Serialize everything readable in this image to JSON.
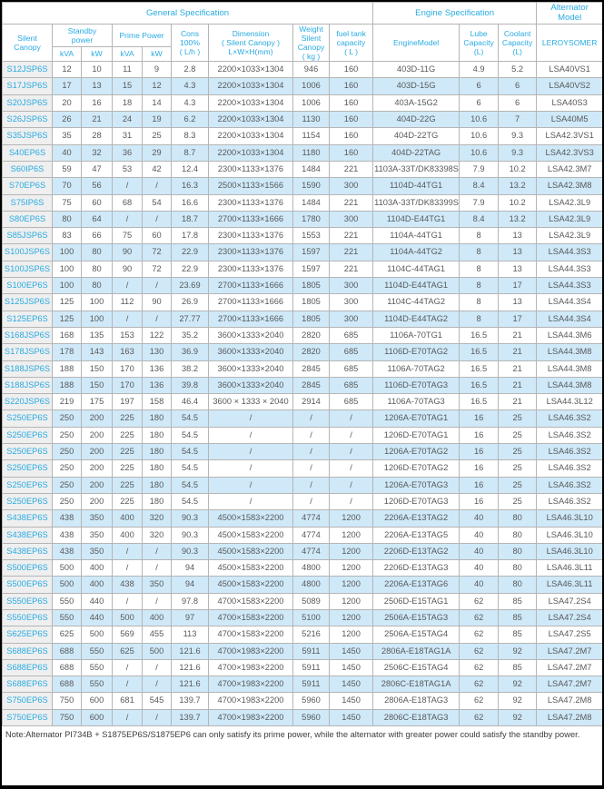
{
  "table": {
    "group_headers": {
      "general": "General Specification",
      "engine": "Engine Specification",
      "alternator": "Alternator Model"
    },
    "sub_headers": {
      "silent_canopy": "Silent Canopy",
      "standby_power": "Standby\npower",
      "prime_power": "Prime Power",
      "kva1": "kVA",
      "kw1": "kW",
      "kva2": "kVA",
      "kw2": "kW",
      "cons": "Cons\n100%\n( L/h )",
      "dimension": "Dimension\n( Silent Canopy )\nL×W×H(mm)",
      "weight": "Weight\nSilent\nCanopy\n( kg )",
      "fuel": "fuel tank\ncapacity\n( L )",
      "engine_model": "EngineModel",
      "lube": "Lube\nCapacity\n(L)",
      "coolant": "Coolant\nCapacity\n(L)",
      "leroysomer": "LEROYSOMER"
    },
    "rows": [
      [
        "S12JSP6S",
        "12",
        "10",
        "11",
        "9",
        "2.8",
        "2200×1033×1304",
        "946",
        "160",
        "403D-11G",
        "4.9",
        "5.2",
        "LSA40VS1"
      ],
      [
        "S17JSP6S",
        "17",
        "13",
        "15",
        "12",
        "4.3",
        "2200×1033×1304",
        "1006",
        "160",
        "403D-15G",
        "6",
        "6",
        "LSA40VS2"
      ],
      [
        "S20JSP6S",
        "20",
        "16",
        "18",
        "14",
        "4.3",
        "2200×1033×1304",
        "1006",
        "160",
        "403A-15G2",
        "6",
        "6",
        "LSA40S3"
      ],
      [
        "S26JSP6S",
        "26",
        "21",
        "24",
        "19",
        "6.2",
        "2200×1033×1304",
        "1130",
        "160",
        "404D-22G",
        "10.6",
        "7",
        "LSA40M5"
      ],
      [
        "S35JSP6S",
        "35",
        "28",
        "31",
        "25",
        "8.3",
        "2200×1033×1304",
        "1154",
        "160",
        "404D-22TG",
        "10.6",
        "9.3",
        "LSA42.3VS1"
      ],
      [
        "S40EP6S",
        "40",
        "32",
        "36",
        "29",
        "8.7",
        "2200×1033×1304",
        "1180",
        "160",
        "404D-22TAG",
        "10.6",
        "9.3",
        "LSA42.3VS3"
      ],
      [
        "S60IP6S",
        "59",
        "47",
        "53",
        "42",
        "12.4",
        "2300×1133×1376",
        "1484",
        "221",
        "1103A-33T/DK83398S",
        "7.9",
        "10.2",
        "LSA42.3M7"
      ],
      [
        "S70EP6S",
        "70",
        "56",
        "/",
        "/",
        "16.3",
        "2500×1133×1566",
        "1590",
        "300",
        "1104D-44TG1",
        "8.4",
        "13.2",
        "LSA42.3M8"
      ],
      [
        "S75IP6S",
        "75",
        "60",
        "68",
        "54",
        "16.6",
        "2300×1133×1376",
        "1484",
        "221",
        "1103A-33T/DK83399S",
        "7.9",
        "10.2",
        "LSA42.3L9"
      ],
      [
        "S80EP6S",
        "80",
        "64",
        "/",
        "/",
        "18.7",
        "2700×1133×1666",
        "1780",
        "300",
        "1104D-E44TG1",
        "8.4",
        "13.2",
        "LSA42.3L9"
      ],
      [
        "S85JSP6S",
        "83",
        "66",
        "75",
        "60",
        "17.8",
        "2300×1133×1376",
        "1553",
        "221",
        "1104A-44TG1",
        "8",
        "13",
        "LSA42.3L9"
      ],
      [
        "S100JSP6S",
        "100",
        "80",
        "90",
        "72",
        "22.9",
        "2300×1133×1376",
        "1597",
        "221",
        "1104A-44TG2",
        "8",
        "13",
        "LSA44.3S3"
      ],
      [
        "S100JSP6S",
        "100",
        "80",
        "90",
        "72",
        "22.9",
        "2300×1133×1376",
        "1597",
        "221",
        "1104C-44TAG1",
        "8",
        "13",
        "LSA44.3S3"
      ],
      [
        "S100EP6S",
        "100",
        "80",
        "/",
        "/",
        "23.69",
        "2700×1133×1666",
        "1805",
        "300",
        "1104D-E44TAG1",
        "8",
        "17",
        "LSA44.3S3"
      ],
      [
        "S125JSP6S",
        "125",
        "100",
        "112",
        "90",
        "26.9",
        "2700×1133×1666",
        "1805",
        "300",
        "1104C-44TAG2",
        "8",
        "13",
        "LSA44.3S4"
      ],
      [
        "S125EP6S",
        "125",
        "100",
        "/",
        "/",
        "27.77",
        "2700×1133×1666",
        "1805",
        "300",
        "1104D-E44TAG2",
        "8",
        "17",
        "LSA44.3S4"
      ],
      [
        "S168JSP6S",
        "168",
        "135",
        "153",
        "122",
        "35.2",
        "3600×1333×2040",
        "2820",
        "685",
        "1106A-70TG1",
        "16.5",
        "21",
        "LSA44.3M6"
      ],
      [
        "S178JSP6S",
        "178",
        "143",
        "163",
        "130",
        "36.9",
        "3600×1333×2040",
        "2820",
        "685",
        "1106D-E70TAG2",
        "16.5",
        "21",
        "LSA44.3M8"
      ],
      [
        "S188JSP6S",
        "188",
        "150",
        "170",
        "136",
        "38.2",
        "3600×1333×2040",
        "2845",
        "685",
        "1106A-70TAG2",
        "16.5",
        "21",
        "LSA44.3M8"
      ],
      [
        "S188JSP6S",
        "188",
        "150",
        "170",
        "136",
        "39.8",
        "3600×1333×2040",
        "2845",
        "685",
        "1106D-E70TAG3",
        "16.5",
        "21",
        "LSA44.3M8"
      ],
      [
        "S220JSP6S",
        "219",
        "175",
        "197",
        "158",
        "46.4",
        "3600 × 1333 × 2040",
        "2914",
        "685",
        "1106A-70TAG3",
        "16.5",
        "21",
        "LSA44.3L12"
      ],
      [
        "S250EP6S",
        "250",
        "200",
        "225",
        "180",
        "54.5",
        "/",
        "/",
        "/",
        "1206A-E70TAG1",
        "16",
        "25",
        "LSA46.3S2"
      ],
      [
        "S250EP6S",
        "250",
        "200",
        "225",
        "180",
        "54.5",
        "/",
        "/",
        "/",
        "1206D-E70TAG1",
        "16",
        "25",
        "LSA46.3S2"
      ],
      [
        "S250EP6S",
        "250",
        "200",
        "225",
        "180",
        "54.5",
        "/",
        "/",
        "/",
        "1206A-E70TAG2",
        "16",
        "25",
        "LSA46.3S2"
      ],
      [
        "S250EP6S",
        "250",
        "200",
        "225",
        "180",
        "54.5",
        "/",
        "/",
        "/",
        "1206D-E70TAG2",
        "16",
        "25",
        "LSA46.3S2"
      ],
      [
        "S250EP6S",
        "250",
        "200",
        "225",
        "180",
        "54.5",
        "/",
        "/",
        "/",
        "1206A-E70TAG3",
        "16",
        "25",
        "LSA46.3S2"
      ],
      [
        "S250EP6S",
        "250",
        "200",
        "225",
        "180",
        "54.5",
        "/",
        "/",
        "/",
        "1206D-E70TAG3",
        "16",
        "25",
        "LSA46.3S2"
      ],
      [
        "S438EP6S",
        "438",
        "350",
        "400",
        "320",
        "90.3",
        "4500×1583×2200",
        "4774",
        "1200",
        "2206A-E13TAG2",
        "40",
        "80",
        "LSA46.3L10"
      ],
      [
        "S438EP6S",
        "438",
        "350",
        "400",
        "320",
        "90.3",
        "4500×1583×2200",
        "4774",
        "1200",
        "2206A-E13TAG5",
        "40",
        "80",
        "LSA46.3L10"
      ],
      [
        "S438EP6S",
        "438",
        "350",
        "/",
        "/",
        "90.3",
        "4500×1583×2200",
        "4774",
        "1200",
        "2206D-E13TAG2",
        "40",
        "80",
        "LSA46.3L10"
      ],
      [
        "S500EP6S",
        "500",
        "400",
        "/",
        "/",
        "94",
        "4500×1583×2200",
        "4800",
        "1200",
        "2206D-E13TAG3",
        "40",
        "80",
        "LSA46.3L11"
      ],
      [
        "S500EP6S",
        "500",
        "400",
        "438",
        "350",
        "94",
        "4500×1583×2200",
        "4800",
        "1200",
        "2206A-E13TAG6",
        "40",
        "80",
        "LSA46.3L11"
      ],
      [
        "S550EP6S",
        "550",
        "440",
        "/",
        "/",
        "97.8",
        "4700×1583×2200",
        "5089",
        "1200",
        "2506D-E15TAG1",
        "62",
        "85",
        "LSA47.2S4"
      ],
      [
        "S550EP6S",
        "550",
        "440",
        "500",
        "400",
        "97",
        "4700×1583×2200",
        "5100",
        "1200",
        "2506A-E15TAG3",
        "62",
        "85",
        "LSA47.2S4"
      ],
      [
        "S625EP6S",
        "625",
        "500",
        "569",
        "455",
        "113",
        "4700×1583×2200",
        "5216",
        "1200",
        "2506A-E15TAG4",
        "62",
        "85",
        "LSA47.2S5"
      ],
      [
        "S688EP6S",
        "688",
        "550",
        "625",
        "500",
        "121.6",
        "4700×1983×2200",
        "5911",
        "1450",
        "2806A-E18TAG1A",
        "62",
        "92",
        "LSA47.2M7"
      ],
      [
        "S688EP6S",
        "688",
        "550",
        "/",
        "/",
        "121.6",
        "4700×1983×2200",
        "5911",
        "1450",
        "2506C-E15TAG4",
        "62",
        "85",
        "LSA47.2M7"
      ],
      [
        "S688EP6S",
        "688",
        "550",
        "/",
        "/",
        "121.6",
        "4700×1983×2200",
        "5911",
        "1450",
        "2806C-E18TAG1A",
        "62",
        "92",
        "LSA47.2M7"
      ],
      [
        "S750EP6S",
        "750",
        "600",
        "681",
        "545",
        "139.7",
        "4700×1983×2200",
        "5960",
        "1450",
        "2806A-E18TAG3",
        "62",
        "92",
        "LSA47.2M8"
      ],
      [
        "S750EP6S",
        "750",
        "600",
        "/",
        "/",
        "139.7",
        "4700×1983×2200",
        "5960",
        "1450",
        "2806C-E18TAG3",
        "62",
        "92",
        "LSA47.2M8"
      ]
    ],
    "note": "Note:Alternator PI734B + S1875EP6S/S1875EP6 can only satisfy its prime power, while the alternator with greater power could satisfy the standby power."
  },
  "colors": {
    "accent_blue": "#29abe2",
    "row_alt_blue": "#cfe9f8",
    "first_col_gray": "#efefef",
    "border_gray": "#b5b5b5",
    "text_gray": "#58595b"
  }
}
